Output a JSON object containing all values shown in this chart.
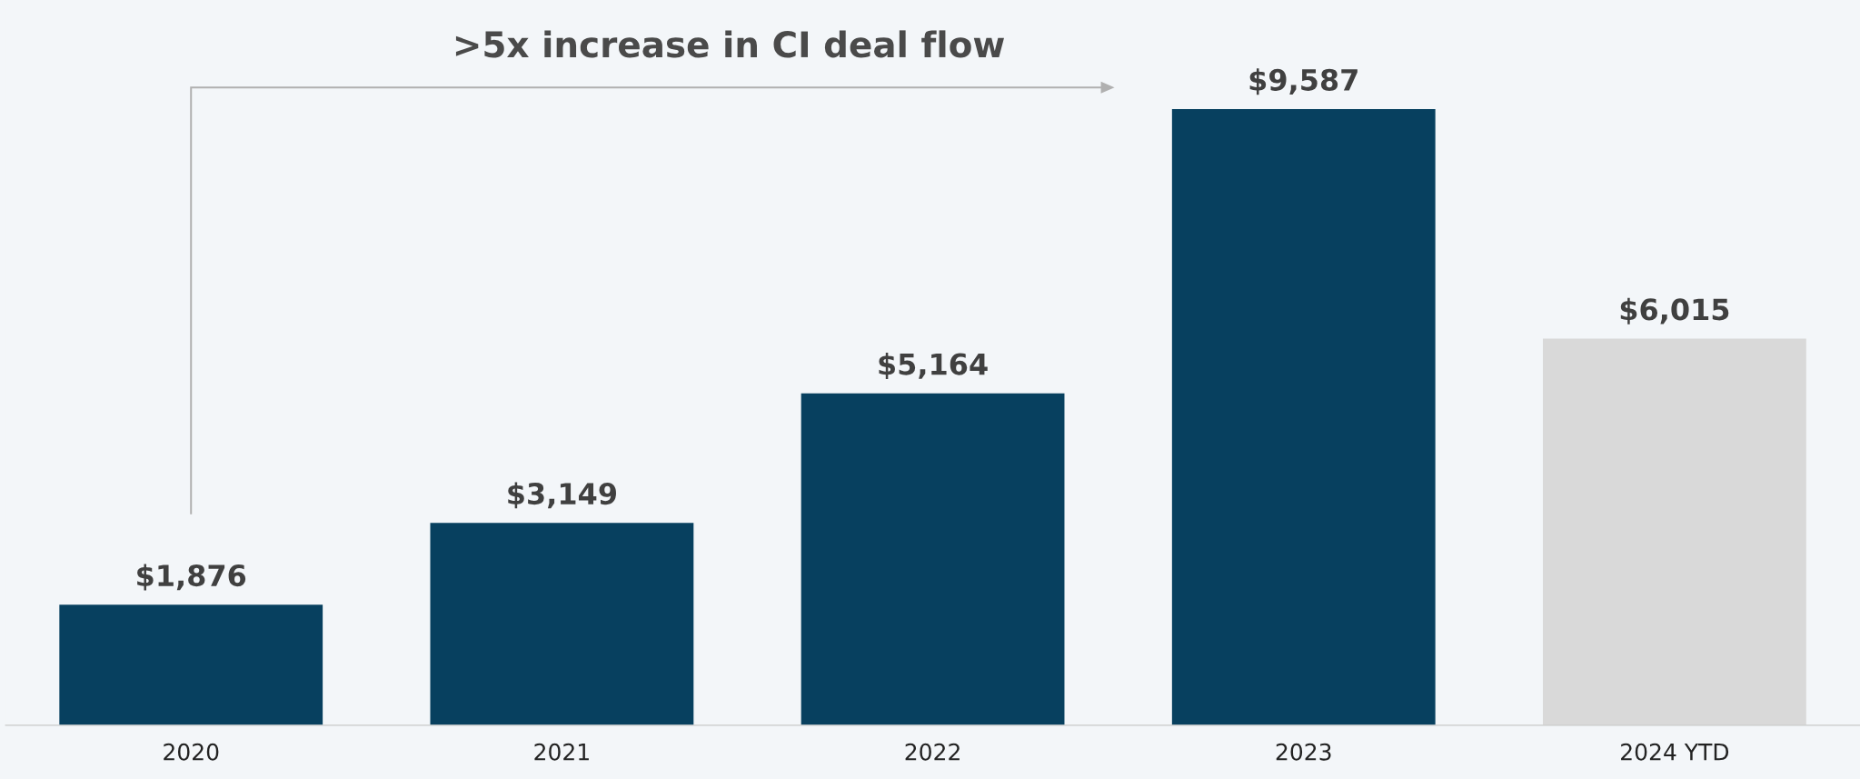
{
  "chart_data": {
    "type": "bar",
    "categories": [
      "2020",
      "2021",
      "2022",
      "2023",
      "2024 YTD"
    ],
    "values": [
      1876,
      3149,
      5164,
      9587,
      6015
    ],
    "colors": [
      "#07405f",
      "#07405f",
      "#07405f",
      "#07405f",
      "#d9d9d9"
    ],
    "value_labels": [
      "$1,876",
      "$3,149",
      "$5,164",
      "$9,587",
      "$6,015"
    ],
    "title": ">5x increase in CI deal flow",
    "grid": false,
    "legend": false,
    "tick_labels": "x"
  }
}
